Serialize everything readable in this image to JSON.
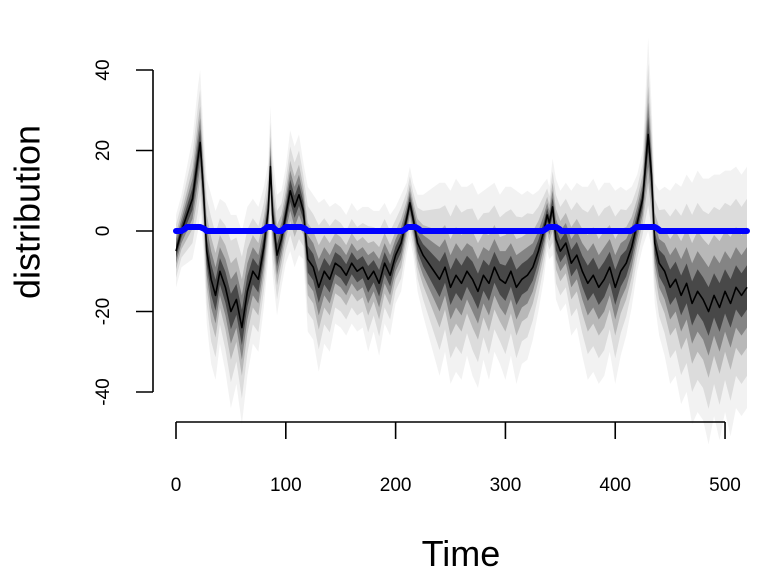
{
  "chart_data": {
    "type": "line",
    "title": "",
    "xlabel": "Time",
    "ylabel": "distribution",
    "xlim": [
      0,
      520
    ],
    "ylim": [
      -40,
      40
    ],
    "x_ticks": [
      0,
      100,
      200,
      300,
      400,
      500
    ],
    "y_ticks": [
      -40,
      -20,
      0,
      20,
      40
    ],
    "x_tick_labels": [
      "0",
      "100",
      "200",
      "300",
      "400",
      "500"
    ],
    "y_tick_labels": [
      "-40",
      "-20",
      "0",
      "20",
      "40"
    ],
    "grid": false,
    "series": [
      {
        "style": "posterior-density-band",
        "color": "#000000",
        "x": [
          0,
          5,
          10,
          15,
          20,
          22,
          25,
          28,
          32,
          36,
          40,
          45,
          50,
          55,
          60,
          65,
          70,
          75,
          80,
          84,
          86,
          88,
          92,
          96,
          100,
          104,
          108,
          112,
          116,
          120,
          125,
          130,
          135,
          140,
          145,
          150,
          155,
          160,
          165,
          170,
          175,
          180,
          185,
          190,
          195,
          200,
          205,
          210,
          213,
          216,
          220,
          225,
          230,
          235,
          240,
          245,
          250,
          255,
          260,
          265,
          270,
          275,
          280,
          285,
          290,
          295,
          300,
          305,
          310,
          315,
          320,
          325,
          330,
          335,
          338,
          340,
          343,
          346,
          350,
          355,
          360,
          365,
          370,
          375,
          380,
          385,
          390,
          395,
          400,
          405,
          410,
          415,
          420,
          425,
          430,
          433,
          436,
          440,
          445,
          450,
          455,
          460,
          465,
          470,
          475,
          480,
          485,
          490,
          495,
          500,
          505,
          510,
          515,
          520
        ],
        "median": [
          -5,
          0,
          4,
          8,
          18,
          22,
          10,
          -5,
          -12,
          -16,
          -10,
          -14,
          -20,
          -17,
          -24,
          -15,
          -10,
          -12,
          -4,
          5,
          16,
          4,
          -6,
          -2,
          4,
          10,
          6,
          9,
          5,
          -7,
          -9,
          -14,
          -10,
          -12,
          -8,
          -9,
          -11,
          -8,
          -10,
          -9,
          -12,
          -10,
          -13,
          -8,
          -11,
          -6,
          -3,
          3,
          7,
          3,
          -3,
          -6,
          -8,
          -10,
          -12,
          -9,
          -14,
          -11,
          -13,
          -10,
          -12,
          -15,
          -11,
          -13,
          -9,
          -12,
          -13,
          -10,
          -14,
          -12,
          -11,
          -9,
          -5,
          0,
          4,
          2,
          6,
          -2,
          -5,
          -3,
          -8,
          -6,
          -10,
          -13,
          -11,
          -14,
          -12,
          -9,
          -14,
          -10,
          -8,
          -4,
          2,
          8,
          24,
          14,
          -3,
          -8,
          -10,
          -14,
          -12,
          -16,
          -13,
          -18,
          -15,
          -17,
          -20,
          -16,
          -19,
          -15,
          -18,
          -14,
          -16,
          -14
        ],
        "spread": [
          3,
          3,
          4,
          5,
          6,
          6,
          5,
          6,
          7,
          7,
          6,
          7,
          8,
          7,
          8,
          7,
          6,
          6,
          5,
          4,
          5,
          5,
          5,
          4,
          4,
          5,
          5,
          5,
          4,
          6,
          6,
          7,
          6,
          6,
          5,
          5,
          5,
          5,
          5,
          5,
          6,
          5,
          6,
          5,
          5,
          4,
          4,
          3,
          3,
          3,
          4,
          5,
          6,
          7,
          8,
          7,
          8,
          8,
          8,
          7,
          8,
          8,
          7,
          8,
          7,
          7,
          8,
          7,
          8,
          7,
          7,
          6,
          5,
          4,
          3,
          3,
          4,
          5,
          5,
          5,
          6,
          6,
          7,
          8,
          8,
          8,
          8,
          7,
          8,
          7,
          6,
          5,
          4,
          4,
          8,
          6,
          5,
          6,
          7,
          8,
          8,
          9,
          9,
          10,
          10,
          10,
          11,
          10,
          11,
          10,
          11,
          10,
          10,
          10
        ]
      },
      {
        "style": "state-line",
        "color": "#0000ff",
        "x": [
          0,
          5,
          8,
          10,
          22,
          26,
          28,
          78,
          81,
          83,
          88,
          90,
          92,
          96,
          98,
          100,
          114,
          118,
          120,
          206,
          209,
          211,
          218,
          221,
          223,
          334,
          337,
          339,
          346,
          349,
          351,
          414,
          417,
          419,
          436,
          439,
          441,
          520
        ],
        "y": [
          0,
          0,
          0.5,
          1,
          1,
          0.5,
          0,
          0,
          0.5,
          1,
          1,
          0.5,
          0,
          0,
          0.5,
          1,
          1,
          0.5,
          0,
          0,
          0.5,
          1,
          1,
          0.5,
          0,
          0,
          0.5,
          1,
          1,
          0.5,
          0,
          0,
          0.5,
          1,
          1,
          0.5,
          0,
          0
        ]
      }
    ]
  }
}
